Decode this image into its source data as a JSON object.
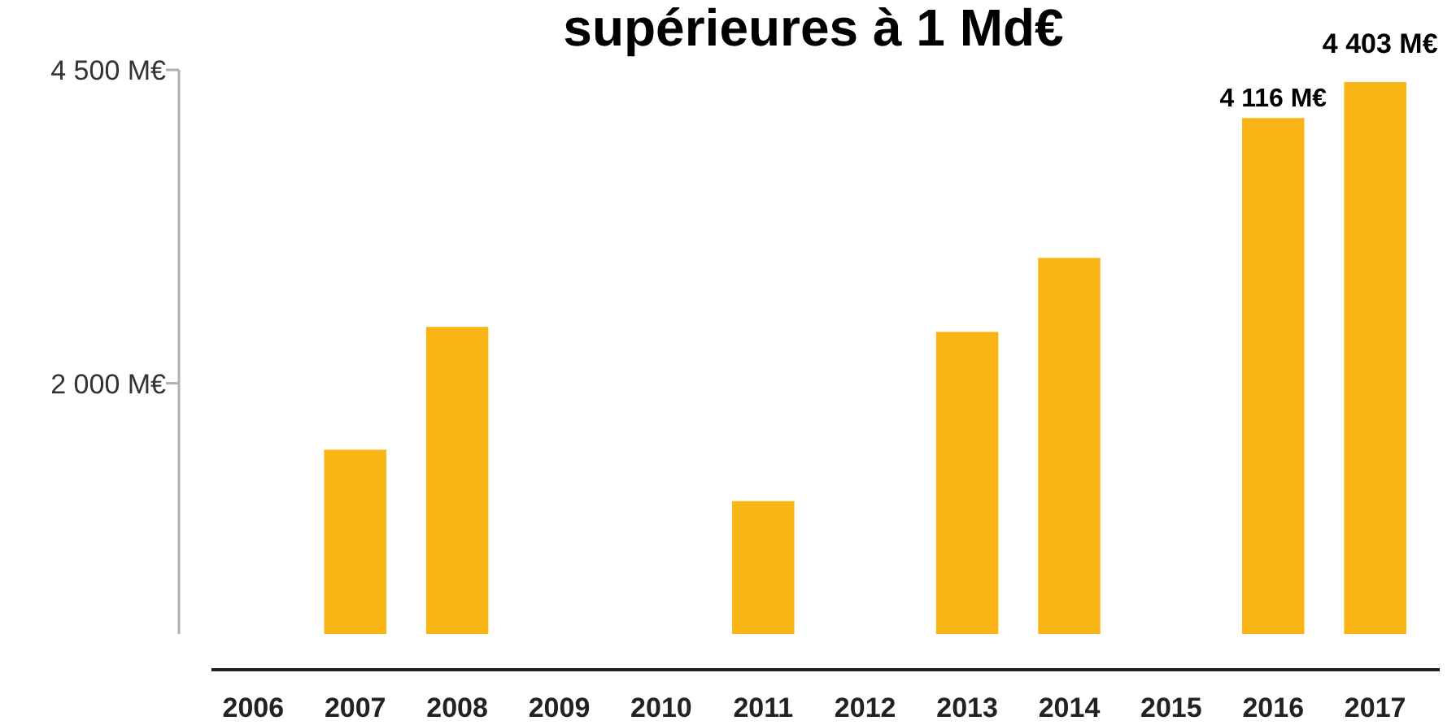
{
  "chart_data": {
    "type": "bar",
    "title": "supérieures à 1 Md€",
    "categories": [
      "2006",
      "2007",
      "2008",
      "2009",
      "2010",
      "2011",
      "2012",
      "2013",
      "2014",
      "2015",
      "2016",
      "2017"
    ],
    "values": [
      null,
      1470,
      2450,
      null,
      null,
      1060,
      null,
      2410,
      3000,
      null,
      4116,
      4403
    ],
    "value_labels": [
      null,
      null,
      null,
      null,
      null,
      null,
      null,
      null,
      null,
      null,
      "4 116 M€",
      "4 403 M€"
    ],
    "color": "#f9b515",
    "ylim": [
      0,
      4500
    ],
    "yticks": [
      {
        "value": 2000,
        "label": "2 000 M€"
      },
      {
        "value": 4500,
        "label": "4 500 M€"
      }
    ],
    "grid": false
  }
}
